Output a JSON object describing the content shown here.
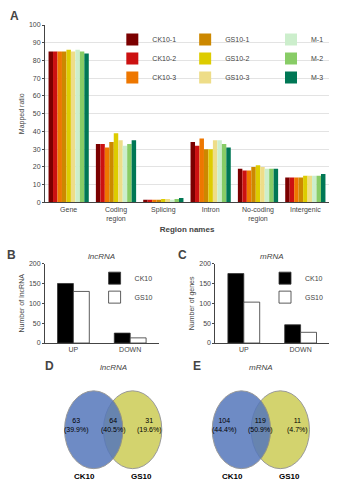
{
  "chart_data": [
    {
      "type": "bar",
      "categories": [
        "Gene",
        "Coding region",
        "Splicing",
        "Intron",
        "No-coding region",
        "Intergenic"
      ],
      "series": [
        {
          "name": "CK10-1",
          "color": "#7B0000",
          "values": [
            85,
            33,
            1.5,
            34,
            19,
            14
          ]
        },
        {
          "name": "CK10-2",
          "color": "#CC1111",
          "values": [
            85,
            33,
            1.5,
            32,
            18,
            14
          ]
        },
        {
          "name": "CK10-3",
          "color": "#EE7700",
          "values": [
            85,
            31,
            1.5,
            36,
            18,
            14
          ]
        },
        {
          "name": "GS10-1",
          "color": "#CC8800",
          "values": [
            85,
            34,
            1.5,
            30,
            20,
            14
          ]
        },
        {
          "name": "GS10-2",
          "color": "#DDCC00",
          "values": [
            86,
            39,
            2.0,
            30,
            21,
            15
          ]
        },
        {
          "name": "GS10-3",
          "color": "#EEDD88",
          "values": [
            85,
            35,
            2.0,
            35,
            20,
            15
          ]
        },
        {
          "name": "M-1",
          "color": "#CCEECC",
          "values": [
            86,
            32,
            1.5,
            35,
            19,
            15
          ]
        },
        {
          "name": "M-2",
          "color": "#88CC66",
          "values": [
            85,
            33,
            2.0,
            33,
            19,
            15
          ]
        },
        {
          "name": "M-3",
          "color": "#007755",
          "values": [
            84,
            35,
            2.5,
            31,
            19,
            16
          ]
        }
      ],
      "xlabel": "Region names",
      "ylabel": "Mapped ratio",
      "ylim": [
        0,
        100
      ],
      "yticks": [
        0,
        10,
        20,
        30,
        40,
        50,
        60,
        70,
        80,
        90,
        100
      ],
      "grid": true,
      "legend": "upper right",
      "annotations": [
        "A"
      ]
    },
    {
      "type": "bar",
      "title": "lncRNA",
      "categories": [
        "UP",
        "DOWN"
      ],
      "series": [
        {
          "name": "CK10",
          "color": "#000000",
          "values": [
            150,
            25
          ]
        },
        {
          "name": "GS10",
          "color": "#FFFFFF",
          "values": [
            130,
            13
          ]
        }
      ],
      "ylabel": "Number of lncRNA",
      "ylim": [
        0,
        200
      ],
      "yticks": [
        0,
        50,
        100,
        150,
        200
      ],
      "grid": false,
      "legend": "upper right",
      "annotations": [
        "B"
      ]
    },
    {
      "type": "bar",
      "title": "mRNA",
      "categories": [
        "UP",
        "DOWN"
      ],
      "series": [
        {
          "name": "CK10",
          "color": "#000000",
          "values": [
            175,
            46
          ]
        },
        {
          "name": "GS10",
          "color": "#FFFFFF",
          "values": [
            103,
            27
          ]
        }
      ],
      "ylabel": "Number of genes",
      "ylim": [
        0,
        200
      ],
      "yticks": [
        0,
        50,
        100,
        150,
        200
      ],
      "grid": false,
      "legend": "upper right",
      "annotations": [
        "C"
      ]
    },
    {
      "type": "venn",
      "title": "lncRNA",
      "series": [
        {
          "name": "CK10",
          "color": "#5577BB"
        },
        {
          "name": "GS10",
          "color": "#CCCC55"
        }
      ],
      "values": [
        63,
        64,
        31
      ],
      "value_labels": [
        "63\n(39.9%)",
        "64\n(40.5%)",
        "31\n(19.6%)"
      ],
      "annotations": [
        "D"
      ]
    },
    {
      "type": "venn",
      "title": "mRNA",
      "series": [
        {
          "name": "CK10",
          "color": "#5577BB"
        },
        {
          "name": "GS10",
          "color": "#CCCC55"
        }
      ],
      "values": [
        104,
        119,
        11
      ],
      "value_labels": [
        "104\n(44.4%)",
        "119\n(50.9%)",
        "11\n(4.7%)"
      ],
      "annotations": [
        "E"
      ]
    }
  ]
}
